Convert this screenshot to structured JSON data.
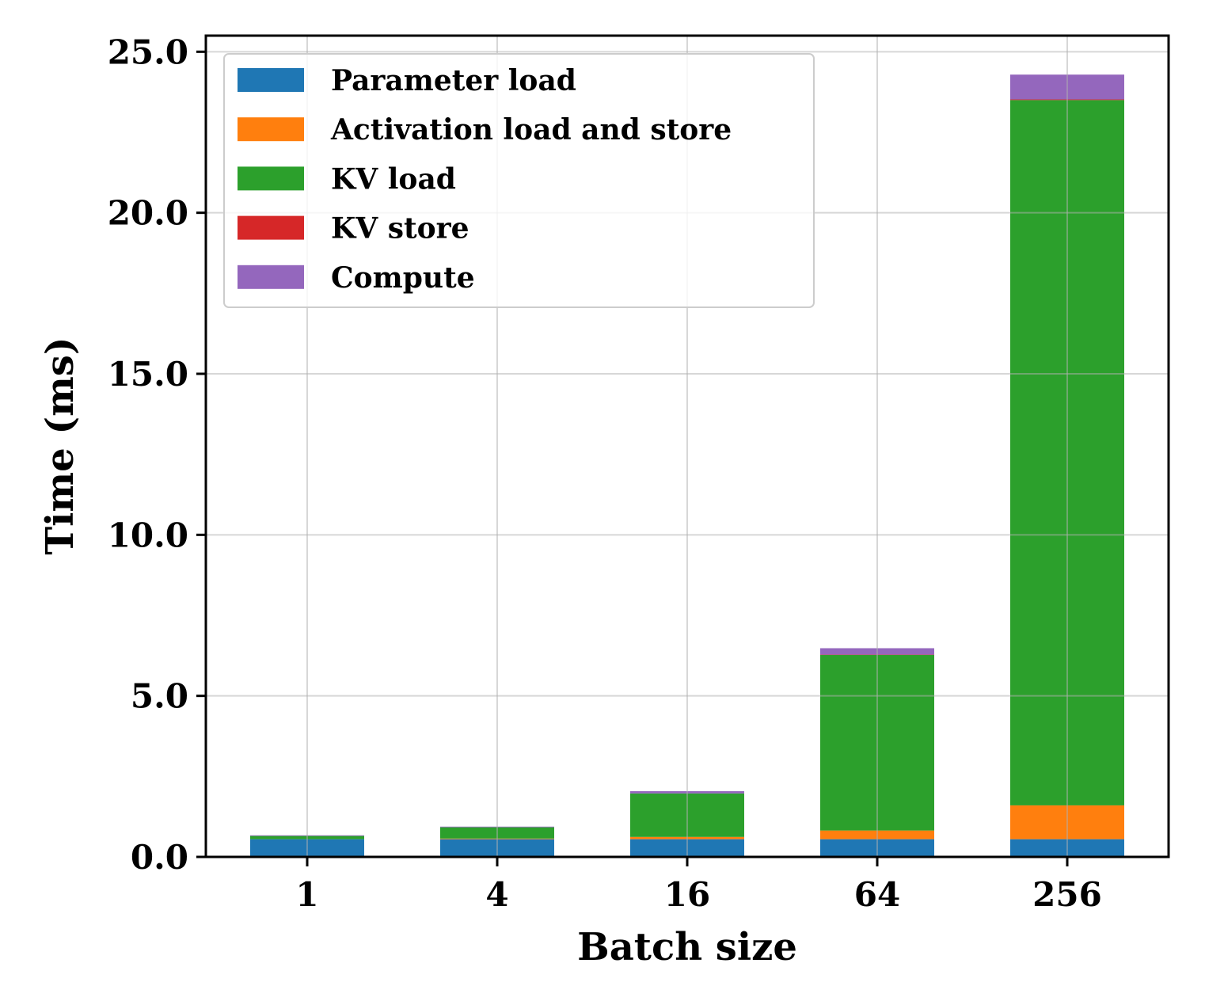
{
  "chart_data": {
    "type": "bar",
    "stacked": true,
    "categories": [
      "1",
      "4",
      "16",
      "64",
      "256"
    ],
    "series": [
      {
        "name": "Parameter load",
        "color": "#1f77b4",
        "values": [
          0.55,
          0.55,
          0.55,
          0.55,
          0.55
        ]
      },
      {
        "name": "Activation load and store",
        "color": "#ff7f0e",
        "values": [
          0.0,
          0.02,
          0.07,
          0.27,
          1.05
        ]
      },
      {
        "name": "KV load",
        "color": "#2ca02c",
        "values": [
          0.1,
          0.35,
          1.35,
          5.45,
          21.9
        ]
      },
      {
        "name": "KV store",
        "color": "#d62728",
        "values": [
          0.0,
          0.0,
          0.0,
          0.01,
          0.02
        ]
      },
      {
        "name": "Compute",
        "color": "#9467bd",
        "values": [
          0.02,
          0.02,
          0.07,
          0.2,
          0.77
        ]
      }
    ],
    "title": "",
    "xlabel": "Batch size",
    "ylabel": "Time (ms)",
    "ylim": [
      0,
      25.5
    ],
    "yticks": [
      "0.0",
      "5.0",
      "10.0",
      "15.0",
      "20.0",
      "25.0"
    ],
    "grid": true,
    "legend_position": "top-left"
  }
}
